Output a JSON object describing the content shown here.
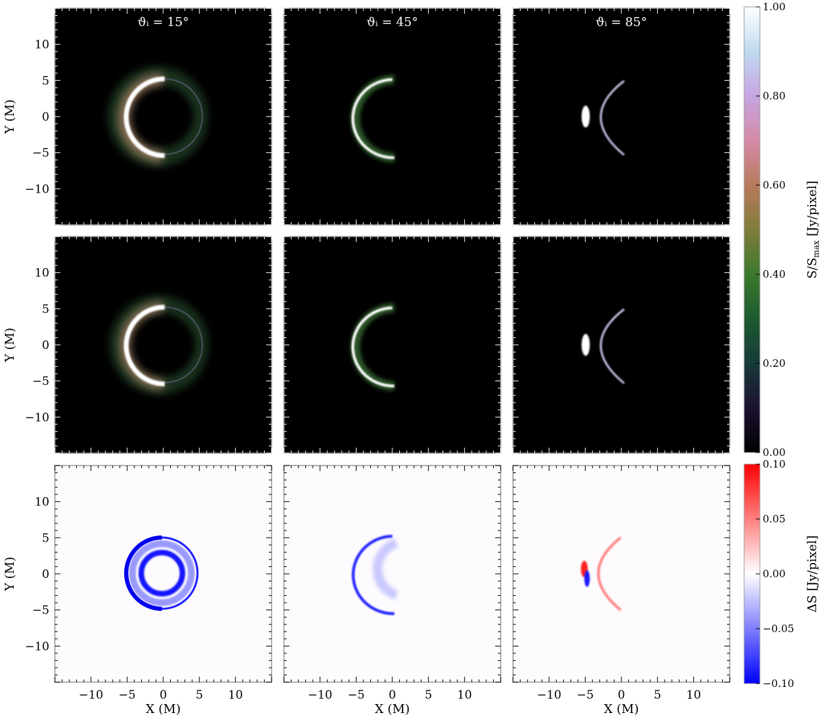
{
  "chart_data": {
    "type": "heatmap",
    "layout": {
      "rows": 3,
      "cols": 3
    },
    "columns": [
      {
        "title": "ϑᵢ = 15°",
        "inclination_deg": 15
      },
      {
        "title": "ϑᵢ = 45°",
        "inclination_deg": 45
      },
      {
        "title": "ϑᵢ = 85°",
        "inclination_deg": 85
      }
    ],
    "axes": {
      "xlabel": "X (M)",
      "ylabel": "Y (M)",
      "xlim": [
        -15,
        15
      ],
      "ylim": [
        -15,
        15
      ],
      "xticks": [
        -10,
        -5,
        0,
        5,
        10
      ],
      "yticks": [
        -10,
        -5,
        0,
        5,
        10
      ],
      "tick_labels": [
        "−10",
        "−5",
        "0",
        "5",
        "10"
      ]
    },
    "rows": [
      {
        "quantity": "S/S_max",
        "colorbar": "intensity",
        "background": "#000000"
      },
      {
        "quantity": "S/S_max",
        "colorbar": "intensity",
        "background": "#000000"
      },
      {
        "quantity": "ΔS",
        "colorbar": "difference",
        "background": "#fdfbfd"
      }
    ],
    "colorbars": {
      "intensity": {
        "label_main": "S/S",
        "label_sub": "max",
        "label_unit": " [Jy/pixel]",
        "range": [
          0,
          1
        ],
        "tick_values": [
          0,
          0.2,
          0.4,
          0.6,
          0.8,
          1.0
        ],
        "tick_labels": [
          "0.00",
          "0.20",
          "0.40",
          "0.60",
          "0.80",
          "1.00"
        ],
        "stops": [
          {
            "value": 0.0,
            "color": "#000000"
          },
          {
            "value": 0.1,
            "color": "#1c1230"
          },
          {
            "value": 0.2,
            "color": "#173a3a"
          },
          {
            "value": 0.3,
            "color": "#1d5a2e"
          },
          {
            "value": 0.4,
            "color": "#3c7a2e"
          },
          {
            "value": 0.5,
            "color": "#7f7c3b"
          },
          {
            "value": 0.6,
            "color": "#b87a5e"
          },
          {
            "value": 0.7,
            "color": "#d48aa6"
          },
          {
            "value": 0.8,
            "color": "#c6a5e2"
          },
          {
            "value": 0.9,
            "color": "#bfdaf0"
          },
          {
            "value": 1.0,
            "color": "#ffffff"
          }
        ]
      },
      "difference": {
        "label": "ΔS [Jy/pixel]",
        "range": [
          -0.1,
          0.1
        ],
        "tick_values": [
          -0.1,
          -0.05,
          0,
          0.05,
          0.1
        ],
        "tick_labels": [
          "−0.10",
          "−0.05",
          "0.00",
          "0.05",
          "0.10"
        ],
        "stops": [
          {
            "value": -0.1,
            "color": "#0000ff"
          },
          {
            "value": 0.0,
            "color": "#ffffff"
          },
          {
            "value": 0.1,
            "color": "#ff0000"
          }
        ]
      }
    }
  }
}
